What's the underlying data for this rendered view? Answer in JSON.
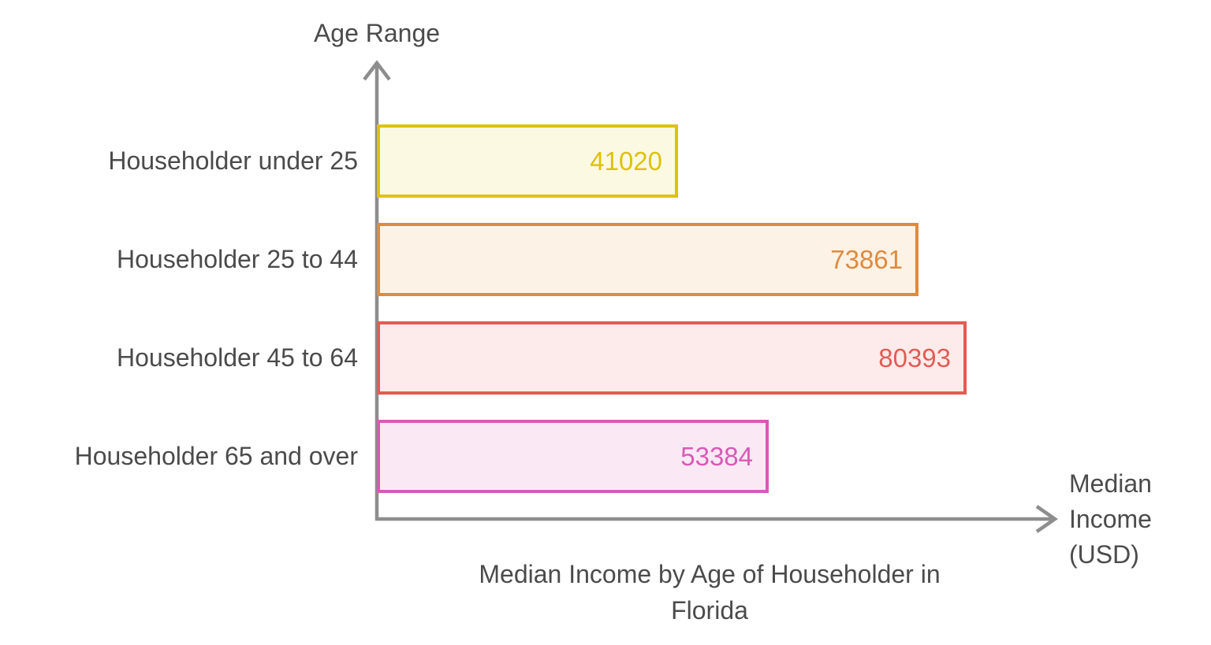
{
  "chart": {
    "y_axis_label": "Age Range",
    "x_axis_label": "Median\nIncome\n(USD)",
    "title": "Median Income by Age of Householder in\nFlorida"
  },
  "chart_data": {
    "type": "bar",
    "orientation": "horizontal",
    "title": "Median Income by Age of Householder in Florida",
    "xlabel": "Median Income (USD)",
    "ylabel": "Age Range",
    "categories": [
      "Householder under 25",
      "Householder 25 to 44",
      "Householder 45 to 64",
      "Householder 65 and over"
    ],
    "values": [
      41020,
      73861,
      80393,
      53384
    ],
    "value_labels": [
      "41020",
      "73861",
      "80393",
      "53384"
    ],
    "xlim": [
      0,
      93000
    ],
    "grid": false,
    "legend": "none",
    "bar_border_colors": [
      "#ddc20a",
      "#e08a3e",
      "#e25c55",
      "#d85ab7"
    ],
    "bar_fill_colors": [
      "#fcf9e2",
      "#fdf2e6",
      "#fcebea",
      "#fbe8f5"
    ],
    "axis_color": "#8d8d8d",
    "text_color": "#4b4b4b"
  }
}
